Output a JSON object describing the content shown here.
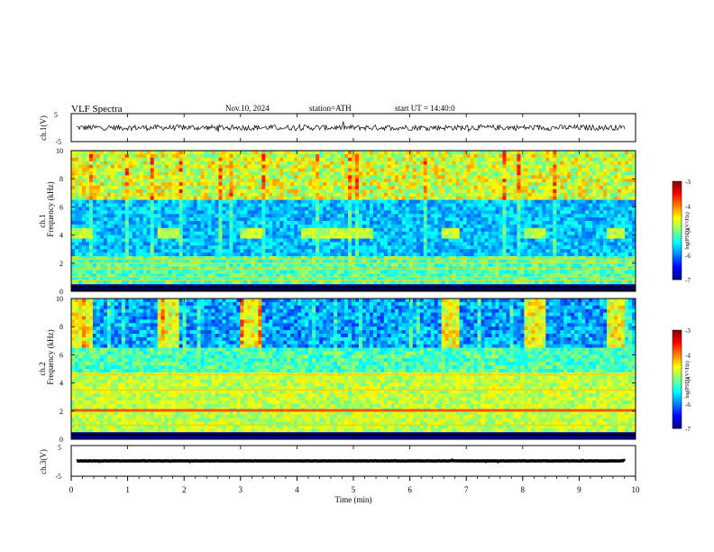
{
  "header": {
    "title": "VLF  Spectra",
    "date": "Nov.10, 2024",
    "station": "station=ATH",
    "start": "start  UT  =   14:40:0"
  },
  "chart_data": [
    {
      "type": "line",
      "name": "ch1-waveform",
      "ylabel": "ch.1(V)",
      "ylim": [
        -5,
        5
      ],
      "yticks": [
        "5",
        "-5"
      ],
      "xlim": [
        0,
        10
      ],
      "baseline": 0.0,
      "amplitude": 1.0
    },
    {
      "type": "heatmap",
      "name": "ch1-spectrogram",
      "ylabel": "ch.1\nFrequency  (kHz)",
      "ylim": [
        0,
        10
      ],
      "yticks": [
        "0",
        "2",
        "4",
        "6",
        "8",
        "10"
      ],
      "xlim": [
        0,
        10
      ],
      "colorbar_label": "log(PSD)(V²/Hz)",
      "colorbar_range": [
        -7,
        -3
      ],
      "colorbar_ticks": [
        "-3",
        "-4",
        "-5",
        "-6",
        "-7"
      ],
      "transmitter_blocks_min": [
        [
          0.0,
          0.4
        ],
        [
          1.55,
          1.9
        ],
        [
          3.0,
          3.35
        ],
        [
          4.1,
          5.35
        ],
        [
          6.55,
          6.9
        ],
        [
          8.0,
          8.4
        ],
        [
          9.5,
          9.8
        ]
      ],
      "transmitter_band_khz": 4.1,
      "noise_lines_khz": [
        0.1,
        0.3,
        0.8,
        1.0,
        1.6,
        2.0,
        2.3
      ]
    },
    {
      "type": "heatmap",
      "name": "ch2-spectrogram",
      "ylabel": "ch.2\nFrequency  (kHz)",
      "ylim": [
        0,
        10
      ],
      "yticks": [
        "0",
        "2",
        "4",
        "6",
        "8",
        "10"
      ],
      "xlim": [
        0,
        10
      ],
      "colorbar_label": "log(PSD)(V²/Hz)",
      "colorbar_range": [
        -7,
        -3
      ],
      "colorbar_ticks": [
        "-3",
        "-4",
        "-5",
        "-6",
        "-7"
      ],
      "transmitter_blocks_min": [
        [
          0.0,
          0.4
        ],
        [
          1.55,
          1.9
        ],
        [
          3.0,
          3.35
        ],
        [
          6.55,
          6.9
        ],
        [
          8.0,
          8.4
        ],
        [
          9.5,
          9.8
        ]
      ],
      "transmitter_band_khz": 4.0,
      "noise_lines_khz": [
        0.3,
        1.0,
        2.0,
        2.1,
        3.5,
        4.6
      ]
    },
    {
      "type": "line",
      "name": "ch3-waveform",
      "ylabel": "ch.3(V)",
      "ylim": [
        -5,
        5
      ],
      "yticks": [
        "5",
        "-5"
      ],
      "xlim": [
        0,
        10
      ],
      "baseline": 0.0,
      "amplitude": 0.15
    }
  ],
  "xaxis": {
    "label": "Time  (min)",
    "ticks": [
      "0",
      "1",
      "2",
      "3",
      "4",
      "5",
      "6",
      "7",
      "8",
      "9",
      "10"
    ]
  }
}
